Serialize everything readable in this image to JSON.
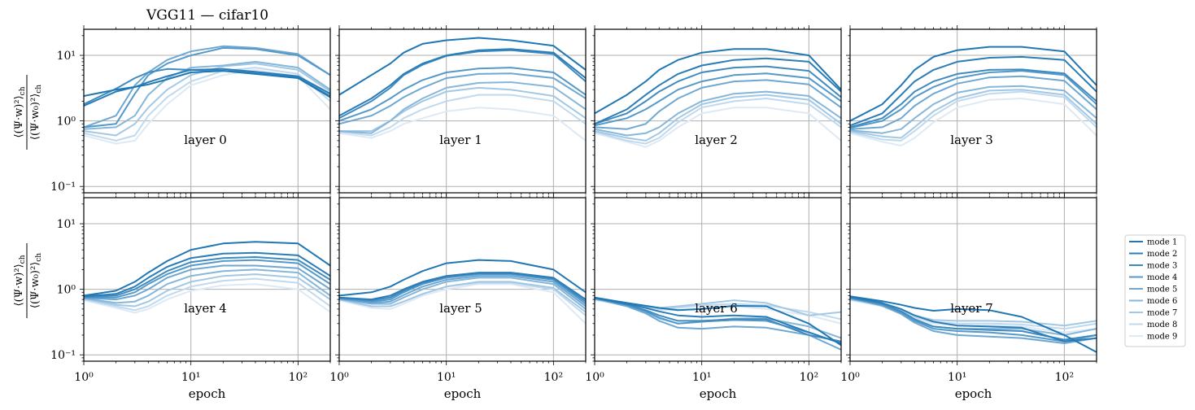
{
  "title": "VGG11 — cifar10",
  "ylabel_num": "⟨(Ψ·w)²⟩",
  "ylabel_den": "⟨(Ψ·w₀)²⟩",
  "ylabel_sub": "ch",
  "xlabel": "epoch",
  "x_ticks": [
    "10⁰",
    "10¹",
    "10²"
  ],
  "y_ticks": [
    "10¹",
    "10⁰",
    "10⁻¹"
  ],
  "legend": [
    "mode 1",
    "mode 2",
    "mode 3",
    "mode 4",
    "mode 5",
    "mode 6",
    "mode 7",
    "mode 8",
    "mode 9"
  ],
  "colors": {
    "modes": [
      "#1f77b4",
      "#2b7db8",
      "#3f8bc0",
      "#5599c9",
      "#6ea8d2",
      "#86b7da",
      "#a3c8e4",
      "#c0d9ee",
      "#dde9f5"
    ],
    "grid": "#b0b0b0"
  },
  "chart_data": {
    "type": "line",
    "xscale": "log",
    "yscale": "log",
    "xlim": [
      1,
      200
    ],
    "ylim": [
      0.08,
      25
    ],
    "x": [
      1,
      2,
      3,
      4,
      6,
      10,
      20,
      40,
      100,
      200
    ],
    "panels": [
      {
        "label": "layer 0",
        "series": [
          [
            2.4,
            3.0,
            3.3,
            3.6,
            4.3,
            5.5,
            5.8,
            5.2,
            4.5,
            2.3
          ],
          [
            1.7,
            2.8,
            3.3,
            3.9,
            4.8,
            6.0,
            6.2,
            5.6,
            4.8,
            2.6
          ],
          [
            1.8,
            3.1,
            4.5,
            5.5,
            6.2,
            6.0,
            5.8,
            5.5,
            4.6,
            2.4
          ],
          [
            0.8,
            0.9,
            2.6,
            5.0,
            7.5,
            10.0,
            13.0,
            12.5,
            10.0,
            5.0
          ],
          [
            0.8,
            1.2,
            3.5,
            5.5,
            8.5,
            11.5,
            13.8,
            13.0,
            10.5,
            5.0
          ],
          [
            0.75,
            0.8,
            1.2,
            2.5,
            4.5,
            6.5,
            7.0,
            8.0,
            6.5,
            3.0
          ],
          [
            0.7,
            0.6,
            0.9,
            1.6,
            3.0,
            5.0,
            6.8,
            7.5,
            6.0,
            2.8
          ],
          [
            0.65,
            0.5,
            0.6,
            1.2,
            2.3,
            4.0,
            5.8,
            6.5,
            5.2,
            2.0
          ],
          [
            0.6,
            0.45,
            0.5,
            0.9,
            1.8,
            3.5,
            5.0,
            6.0,
            4.8,
            1.5
          ]
        ]
      },
      {
        "label": "layer 1",
        "series": [
          [
            2.5,
            5.0,
            7.5,
            11.0,
            15.0,
            17.0,
            18.5,
            17.0,
            14.0,
            6.0
          ],
          [
            1.2,
            2.2,
            3.5,
            5.2,
            7.5,
            10.0,
            12.0,
            12.5,
            11.0,
            4.5
          ],
          [
            1.1,
            2.0,
            3.2,
            5.0,
            7.2,
            9.8,
            11.5,
            12.0,
            10.5,
            4.0
          ],
          [
            1.0,
            1.5,
            2.2,
            3.0,
            4.2,
            5.5,
            6.3,
            6.5,
            5.5,
            2.5
          ],
          [
            0.9,
            1.2,
            1.7,
            2.3,
            3.2,
            4.5,
            5.2,
            5.3,
            4.5,
            2.2
          ],
          [
            0.7,
            0.65,
            1.0,
            1.5,
            2.2,
            3.2,
            3.8,
            3.9,
            3.3,
            1.5
          ],
          [
            0.7,
            0.7,
            1.0,
            1.4,
            2.0,
            2.8,
            3.2,
            3.0,
            2.4,
            1.1
          ],
          [
            0.68,
            0.6,
            0.8,
            1.1,
            1.5,
            2.0,
            2.5,
            2.5,
            2.0,
            0.9
          ],
          [
            0.65,
            0.55,
            0.7,
            0.9,
            1.1,
            1.4,
            1.6,
            1.5,
            1.2,
            0.5
          ]
        ]
      },
      {
        "label": "layer 2",
        "series": [
          [
            1.3,
            2.5,
            4.0,
            6.0,
            8.5,
            11.0,
            12.5,
            12.5,
            10.0,
            3.0
          ],
          [
            0.9,
            1.5,
            2.5,
            3.5,
            5.2,
            7.0,
            8.5,
            9.0,
            8.0,
            2.8
          ],
          [
            0.9,
            1.3,
            2.0,
            2.8,
            4.0,
            5.5,
            6.5,
            6.8,
            5.8,
            2.3
          ],
          [
            0.85,
            1.1,
            1.5,
            2.0,
            3.0,
            4.0,
            5.0,
            5.3,
            4.5,
            2.0
          ],
          [
            0.8,
            0.75,
            0.9,
            1.4,
            2.2,
            3.2,
            4.0,
            4.2,
            3.6,
            1.6
          ],
          [
            0.75,
            0.6,
            0.65,
            0.8,
            1.3,
            2.0,
            2.6,
            2.8,
            2.4,
            1.1
          ],
          [
            0.7,
            0.55,
            0.5,
            0.65,
            1.1,
            1.8,
            2.3,
            2.5,
            2.1,
            0.9
          ],
          [
            0.68,
            0.5,
            0.45,
            0.55,
            0.95,
            1.6,
            2.0,
            2.2,
            1.8,
            0.8
          ],
          [
            0.65,
            0.48,
            0.4,
            0.5,
            0.8,
            1.3,
            1.6,
            1.6,
            1.3,
            0.5
          ]
        ]
      },
      {
        "label": "layer 3",
        "series": [
          [
            1.0,
            1.8,
            3.5,
            6.0,
            9.5,
            12.0,
            13.5,
            13.5,
            11.5,
            3.5
          ],
          [
            0.85,
            1.3,
            2.5,
            4.0,
            6.0,
            8.0,
            9.2,
            9.5,
            8.5,
            2.8
          ],
          [
            0.8,
            1.1,
            1.8,
            2.8,
            4.0,
            5.2,
            6.0,
            6.1,
            5.3,
            2.0
          ],
          [
            0.78,
            1.0,
            1.5,
            2.3,
            3.3,
            4.5,
            5.5,
            5.8,
            5.0,
            1.8
          ],
          [
            0.75,
            0.8,
            1.1,
            1.7,
            2.6,
            3.7,
            4.6,
            4.8,
            4.1,
            1.5
          ],
          [
            0.72,
            0.65,
            0.75,
            1.1,
            1.8,
            2.7,
            3.3,
            3.4,
            2.9,
            1.1
          ],
          [
            0.7,
            0.58,
            0.55,
            0.8,
            1.4,
            2.2,
            2.9,
            3.0,
            2.5,
            0.9
          ],
          [
            0.68,
            0.52,
            0.5,
            0.7,
            1.2,
            2.0,
            2.6,
            2.8,
            2.3,
            0.8
          ],
          [
            0.65,
            0.48,
            0.42,
            0.55,
            0.95,
            1.6,
            2.1,
            2.2,
            1.8,
            0.6
          ]
        ]
      },
      {
        "label": "layer 4",
        "series": [
          [
            0.8,
            0.95,
            1.3,
            1.8,
            2.7,
            4.0,
            5.0,
            5.3,
            5.0,
            2.3
          ],
          [
            0.78,
            0.85,
            1.1,
            1.5,
            2.2,
            3.0,
            3.5,
            3.6,
            3.3,
            1.6
          ],
          [
            0.76,
            0.8,
            1.0,
            1.3,
            1.9,
            2.6,
            3.0,
            3.1,
            2.8,
            1.4
          ],
          [
            0.75,
            0.75,
            0.9,
            1.2,
            1.7,
            2.3,
            2.7,
            2.8,
            2.5,
            1.2
          ],
          [
            0.74,
            0.7,
            0.8,
            1.0,
            1.5,
            2.0,
            2.3,
            2.3,
            2.1,
            1.0
          ],
          [
            0.73,
            0.62,
            0.65,
            0.8,
            1.2,
            1.6,
            1.9,
            2.0,
            1.8,
            0.8
          ],
          [
            0.72,
            0.58,
            0.55,
            0.65,
            0.95,
            1.3,
            1.6,
            1.7,
            1.5,
            0.7
          ],
          [
            0.7,
            0.55,
            0.48,
            0.55,
            0.8,
            1.1,
            1.35,
            1.45,
            1.25,
            0.55
          ],
          [
            0.68,
            0.52,
            0.44,
            0.5,
            0.7,
            0.95,
            1.15,
            1.2,
            1.0,
            0.45
          ]
        ]
      },
      {
        "label": "layer 5",
        "series": [
          [
            0.8,
            0.9,
            1.1,
            1.4,
            1.9,
            2.5,
            2.8,
            2.7,
            2.0,
            0.9
          ],
          [
            0.75,
            0.7,
            0.8,
            1.0,
            1.3,
            1.6,
            1.8,
            1.8,
            1.5,
            0.7
          ],
          [
            0.74,
            0.68,
            0.75,
            0.95,
            1.25,
            1.55,
            1.75,
            1.75,
            1.45,
            0.65
          ],
          [
            0.73,
            0.65,
            0.7,
            0.9,
            1.2,
            1.5,
            1.7,
            1.7,
            1.4,
            0.6
          ],
          [
            0.72,
            0.62,
            0.65,
            0.82,
            1.1,
            1.4,
            1.6,
            1.6,
            1.3,
            0.55
          ],
          [
            0.71,
            0.6,
            0.6,
            0.75,
            1.0,
            1.3,
            1.5,
            1.5,
            1.2,
            0.5
          ],
          [
            0.7,
            0.55,
            0.55,
            0.65,
            0.85,
            1.1,
            1.3,
            1.3,
            1.05,
            0.45
          ],
          [
            0.7,
            0.55,
            0.55,
            0.65,
            0.85,
            1.1,
            1.25,
            1.25,
            1.0,
            0.4
          ],
          [
            0.68,
            0.52,
            0.5,
            0.6,
            0.8,
            1.0,
            1.2,
            1.2,
            0.9,
            0.3
          ]
        ]
      },
      {
        "label": "layer 6",
        "series": [
          [
            0.75,
            0.62,
            0.56,
            0.52,
            0.48,
            0.5,
            0.56,
            0.55,
            0.3,
            0.14
          ],
          [
            0.74,
            0.6,
            0.52,
            0.46,
            0.4,
            0.38,
            0.4,
            0.38,
            0.22,
            0.15
          ],
          [
            0.74,
            0.58,
            0.48,
            0.4,
            0.33,
            0.33,
            0.35,
            0.35,
            0.2,
            0.16
          ],
          [
            0.73,
            0.58,
            0.46,
            0.37,
            0.3,
            0.32,
            0.34,
            0.33,
            0.22,
            0.15
          ],
          [
            0.72,
            0.55,
            0.43,
            0.33,
            0.26,
            0.25,
            0.27,
            0.26,
            0.2,
            0.12
          ],
          [
            0.72,
            0.58,
            0.45,
            0.36,
            0.3,
            0.32,
            0.36,
            0.36,
            0.27,
            0.18
          ],
          [
            0.7,
            0.6,
            0.55,
            0.52,
            0.55,
            0.6,
            0.68,
            0.62,
            0.4,
            0.45
          ],
          [
            0.7,
            0.6,
            0.54,
            0.5,
            0.52,
            0.57,
            0.6,
            0.57,
            0.45,
            0.35
          ],
          [
            0.68,
            0.58,
            0.52,
            0.48,
            0.48,
            0.52,
            0.55,
            0.5,
            0.4,
            0.3
          ]
        ]
      },
      {
        "label": "layer 7",
        "series": [
          [
            0.78,
            0.66,
            0.58,
            0.52,
            0.47,
            0.5,
            0.48,
            0.38,
            0.2,
            0.11
          ],
          [
            0.76,
            0.62,
            0.5,
            0.4,
            0.32,
            0.28,
            0.27,
            0.26,
            0.16,
            0.18
          ],
          [
            0.75,
            0.6,
            0.46,
            0.35,
            0.27,
            0.25,
            0.24,
            0.23,
            0.17,
            0.2
          ],
          [
            0.74,
            0.58,
            0.44,
            0.33,
            0.25,
            0.23,
            0.22,
            0.2,
            0.16,
            0.2
          ],
          [
            0.73,
            0.56,
            0.42,
            0.31,
            0.23,
            0.2,
            0.19,
            0.18,
            0.15,
            0.18
          ],
          [
            0.72,
            0.57,
            0.45,
            0.34,
            0.27,
            0.25,
            0.25,
            0.25,
            0.2,
            0.25
          ],
          [
            0.7,
            0.58,
            0.48,
            0.4,
            0.34,
            0.33,
            0.33,
            0.32,
            0.28,
            0.33
          ],
          [
            0.7,
            0.57,
            0.46,
            0.38,
            0.32,
            0.3,
            0.3,
            0.29,
            0.25,
            0.3
          ],
          [
            0.68,
            0.55,
            0.44,
            0.36,
            0.3,
            0.28,
            0.28,
            0.27,
            0.22,
            0.25
          ]
        ]
      }
    ]
  }
}
